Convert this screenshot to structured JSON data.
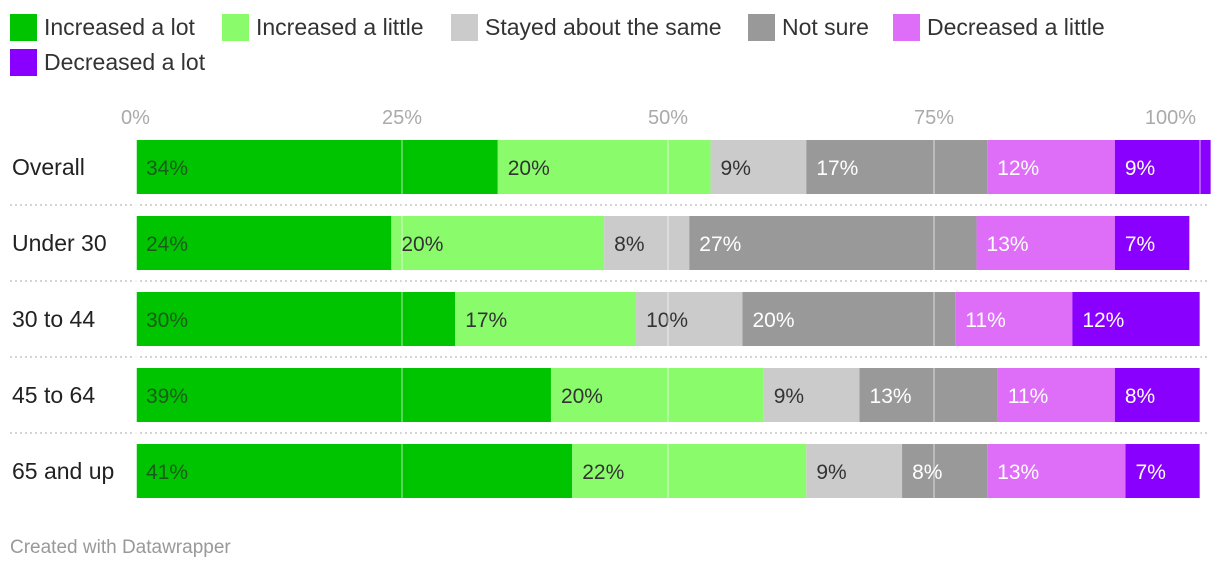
{
  "chart_data": {
    "type": "bar",
    "orientation": "horizontal",
    "stacked": true,
    "categories": [
      "Overall",
      "Under 30",
      "30 to 44",
      "45 to 64",
      "65 and up"
    ],
    "series": [
      {
        "name": "Increased a lot",
        "color": "#00c400",
        "values": [
          34,
          24,
          30,
          39,
          41
        ],
        "labels": [
          "34%",
          "24%",
          "30%",
          "39%",
          "41%"
        ]
      },
      {
        "name": "Increased a little",
        "color": "#8afc6c",
        "values": [
          20,
          20,
          17,
          20,
          22
        ],
        "labels": [
          "20%",
          "20%",
          "17%",
          "20%",
          "22%"
        ]
      },
      {
        "name": "Stayed about the same",
        "color": "#cbcbcb",
        "values": [
          9,
          8,
          10,
          9,
          9
        ],
        "labels": [
          "9%",
          "8%",
          "10%",
          "9%",
          "9%"
        ]
      },
      {
        "name": "Not sure",
        "color": "#999999",
        "values": [
          17,
          27,
          20,
          13,
          8
        ],
        "labels": [
          "17%",
          "27%",
          "20%",
          "13%",
          "8%"
        ]
      },
      {
        "name": "Decreased a little",
        "color": "#de6ef8",
        "values": [
          12,
          13,
          11,
          11,
          13
        ],
        "labels": [
          "12%",
          "13%",
          "11%",
          "11%",
          "13%"
        ]
      },
      {
        "name": "Decreased a lot",
        "color": "#8a00ff",
        "values": [
          9,
          7,
          12,
          8,
          7
        ],
        "labels": [
          "9%",
          "7%",
          "12%",
          "8%",
          "7%"
        ]
      }
    ],
    "xticks": [
      "0%",
      "25%",
      "50%",
      "75%",
      "100%"
    ],
    "xlim": [
      0,
      100
    ],
    "legend_position": "top",
    "grid": true
  },
  "footer": "Created with Datawrapper"
}
